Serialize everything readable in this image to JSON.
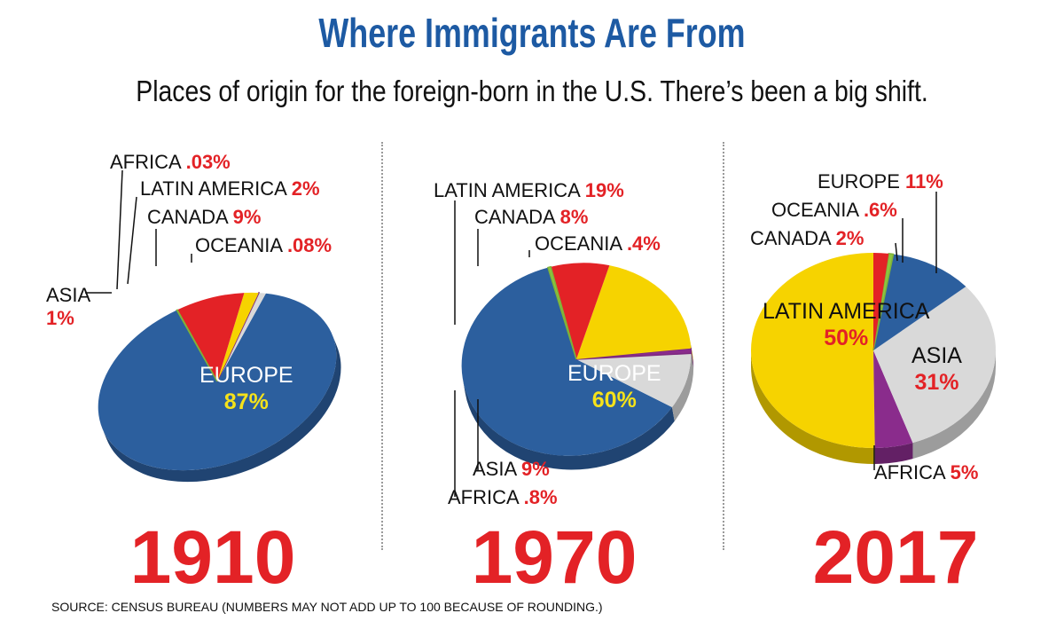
{
  "title": "Where Immigrants Are From",
  "subtitle": "Places of origin for the foreign-born in the U.S. There’s been a big shift.",
  "source": "SOURCE: CENSUS BUREAU (NUMBERS MAY NOT ADD UP TO 100 BECAUSE OF ROUNDING.)",
  "colors": {
    "Europe": "#2c5f9e",
    "Asia": "#d9d9d9",
    "Africa": "#8a2c8c",
    "Latin America": "#f6d300",
    "Canada": "#e32226",
    "Oceania": "#8cc63f",
    "accent_red": "#e32226",
    "title_blue": "#1d5aa3",
    "center_yellow": "#f5e21a"
  },
  "chart_data": [
    {
      "type": "pie",
      "year": "1910",
      "slices": [
        {
          "name": "EUROPE",
          "value": 87,
          "label": "87%"
        },
        {
          "name": "ASIA",
          "value": 1,
          "label": "1%"
        },
        {
          "name": "AFRICA",
          "value": 0.03,
          "label": ".03%"
        },
        {
          "name": "LATIN AMERICA",
          "value": 2,
          "label": "2%"
        },
        {
          "name": "CANADA",
          "value": 9,
          "label": "9%"
        },
        {
          "name": "OCEANIA",
          "value": 0.08,
          "label": ".08%"
        }
      ]
    },
    {
      "type": "pie",
      "year": "1970",
      "slices": [
        {
          "name": "EUROPE",
          "value": 60,
          "label": "60%"
        },
        {
          "name": "ASIA",
          "value": 9,
          "label": "9%"
        },
        {
          "name": "AFRICA",
          "value": 0.8,
          "label": ".8%"
        },
        {
          "name": "LATIN AMERICA",
          "value": 19,
          "label": "19%"
        },
        {
          "name": "CANADA",
          "value": 8,
          "label": "8%"
        },
        {
          "name": "OCEANIA",
          "value": 0.4,
          "label": ".4%"
        }
      ]
    },
    {
      "type": "pie",
      "year": "2017",
      "slices": [
        {
          "name": "EUROPE",
          "value": 11,
          "label": "11%"
        },
        {
          "name": "ASIA",
          "value": 31,
          "label": "31%"
        },
        {
          "name": "AFRICA",
          "value": 5,
          "label": "5%"
        },
        {
          "name": "LATIN AMERICA",
          "value": 50,
          "label": "50%"
        },
        {
          "name": "CANADA",
          "value": 2,
          "label": "2%"
        },
        {
          "name": "OCEANIA",
          "value": 0.6,
          "label": ".6%"
        }
      ]
    }
  ]
}
